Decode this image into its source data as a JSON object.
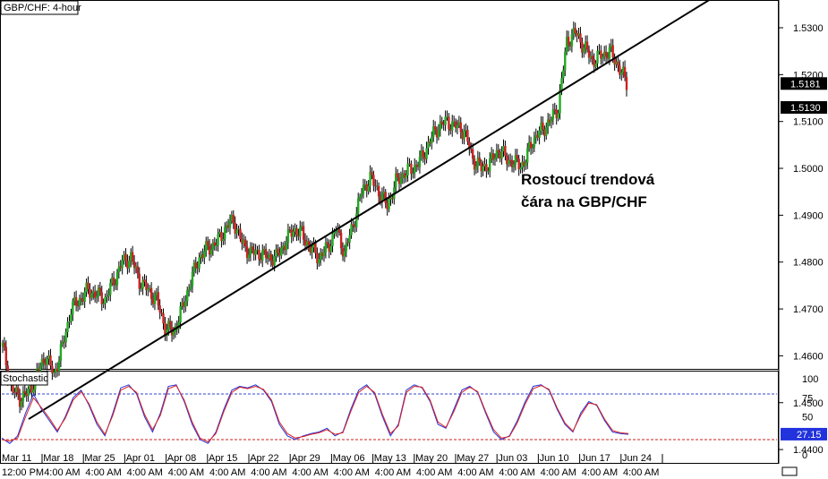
{
  "chart_data": [
    {
      "type": "candlestick",
      "title": "GBP/CHF: 4-hour",
      "annotation": [
        "Rostoucí trendová",
        "čára na GBP/CHF"
      ],
      "ylim": [
        1.444,
        1.533
      ],
      "y_ticks": [
        "1.5300",
        "1.5200",
        "1.5100",
        "1.5000",
        "1.4900",
        "1.4800",
        "1.4700",
        "1.4600",
        "1.4500",
        "1.4400"
      ],
      "x_ticks": [
        "Mar 11",
        "Mar 18",
        "Mar 25",
        "Apr 01",
        "Apr 08",
        "Apr 15",
        "Apr 22",
        "Apr 29",
        "May 06",
        "May 13",
        "May 20",
        "May 27",
        "Jun 03",
        "Jun 10",
        "Jun 17",
        "Jun 24"
      ],
      "time_labels": [
        "12:00 PM",
        "4:00 AM",
        "4:00 AM",
        "4:00 AM",
        "4:00 AM",
        "4:00 AM",
        "4:00 AM",
        "4:00 AM",
        "4:00 AM",
        "4:00 AM",
        "4:00 AM",
        "4:00 AM",
        "4:00 AM",
        "4:00 AM",
        "4:00 AM",
        "4:00 AM"
      ],
      "price_badges": [
        "1.5181",
        "1.5130"
      ],
      "close_path": [
        [
          "Mar 11",
          1.462
        ],
        [
          "Mar 12",
          1.453
        ],
        [
          "Mar 13",
          1.451
        ],
        [
          "Mar 14",
          1.452
        ],
        [
          "Mar 15",
          1.456
        ],
        [
          "Mar 18",
          1.46
        ],
        [
          "Mar 19",
          1.456
        ],
        [
          "Mar 20",
          1.462
        ],
        [
          "Mar 21",
          1.47
        ],
        [
          "Mar 22",
          1.472
        ],
        [
          "Mar 25",
          1.474
        ],
        [
          "Mar 26",
          1.473
        ],
        [
          "Mar 27",
          1.472
        ],
        [
          "Mar 28",
          1.476
        ],
        [
          "Mar 29",
          1.48
        ],
        [
          "Apr 01",
          1.481
        ],
        [
          "Apr 02",
          1.476
        ],
        [
          "Apr 03",
          1.474
        ],
        [
          "Apr 04",
          1.472
        ],
        [
          "Apr 05",
          1.466
        ],
        [
          "Apr 08",
          1.465
        ],
        [
          "Apr 09",
          1.47
        ],
        [
          "Apr 10",
          1.476
        ],
        [
          "Apr 11",
          1.481
        ],
        [
          "Apr 12",
          1.483
        ],
        [
          "Apr 15",
          1.484
        ],
        [
          "Apr 16",
          1.487
        ],
        [
          "Apr 17",
          1.489
        ],
        [
          "Apr 18",
          1.484
        ],
        [
          "Apr 19",
          1.482
        ],
        [
          "Apr 22",
          1.482
        ],
        [
          "Apr 23",
          1.481
        ],
        [
          "Apr 24",
          1.481
        ],
        [
          "Apr 25",
          1.484
        ],
        [
          "Apr 26",
          1.487
        ],
        [
          "Apr 29",
          1.486
        ],
        [
          "Apr 30",
          1.483
        ],
        [
          "May 01",
          1.481
        ],
        [
          "May 02",
          1.483
        ],
        [
          "May 03",
          1.487
        ],
        [
          "May 06",
          1.482
        ],
        [
          "May 07",
          1.488
        ],
        [
          "May 08",
          1.495
        ],
        [
          "May 09",
          1.498
        ],
        [
          "May 10",
          1.495
        ],
        [
          "May 13",
          1.492
        ],
        [
          "May 14",
          1.497
        ],
        [
          "May 15",
          1.499
        ],
        [
          "May 16",
          1.5
        ],
        [
          "May 17",
          1.502
        ],
        [
          "May 20",
          1.506
        ],
        [
          "May 21",
          1.509
        ],
        [
          "May 22",
          1.51
        ],
        [
          "May 23",
          1.509
        ],
        [
          "May 24",
          1.508
        ],
        [
          "May 27",
          1.502
        ],
        [
          "May 28",
          1.5
        ],
        [
          "May 29",
          1.501
        ],
        [
          "May 30",
          1.504
        ],
        [
          "May 31",
          1.502
        ],
        [
          "Jun 03",
          1.501
        ],
        [
          "Jun 04",
          1.501
        ],
        [
          "Jun 05",
          1.506
        ],
        [
          "Jun 06",
          1.508
        ],
        [
          "Jun 07",
          1.51
        ],
        [
          "Jun 10",
          1.513
        ],
        [
          "Jun 11",
          1.527
        ],
        [
          "Jun 12",
          1.529
        ],
        [
          "Jun 13",
          1.526
        ],
        [
          "Jun 14",
          1.523
        ],
        [
          "Jun 17",
          1.524
        ],
        [
          "Jun 18",
          1.525
        ],
        [
          "Jun 19",
          1.522
        ],
        [
          "Jun 20",
          1.5181
        ]
      ],
      "trendline": [
        [
          "Mar 11",
          1.4465
        ],
        [
          "Jun 24",
          1.5125
        ]
      ]
    },
    {
      "type": "line",
      "title": "Stochastic",
      "ylim": [
        0,
        100
      ],
      "y_ticks": [
        "100",
        "75",
        "50",
        "25",
        "0"
      ],
      "levels": [
        80,
        20
      ],
      "last_value": "27.15",
      "series": [
        {
          "color": "#2233dd",
          "values": [
            22,
            15,
            25,
            55,
            80,
            60,
            45,
            30,
            50,
            75,
            85,
            65,
            40,
            25,
            55,
            88,
            92,
            80,
            50,
            30,
            55,
            90,
            92,
            70,
            40,
            20,
            15,
            30,
            60,
            85,
            90,
            88,
            92,
            85,
            70,
            40,
            25,
            20,
            25,
            28,
            30,
            35,
            25,
            30,
            60,
            85,
            92,
            80,
            50,
            25,
            40,
            85,
            92,
            88,
            70,
            40,
            35,
            60,
            85,
            90,
            82,
            55,
            30,
            20,
            25,
            45,
            70,
            90,
            92,
            85,
            60,
            40,
            30,
            55,
            70,
            65,
            45,
            30,
            28,
            27
          ]
        },
        {
          "color": "#dd2222",
          "values": [
            20,
            18,
            22,
            50,
            75,
            62,
            48,
            32,
            48,
            72,
            83,
            67,
            43,
            27,
            52,
            85,
            90,
            82,
            53,
            33,
            52,
            87,
            91,
            72,
            43,
            22,
            17,
            28,
            57,
            82,
            89,
            87,
            90,
            86,
            72,
            43,
            28,
            22,
            24,
            27,
            29,
            33,
            27,
            29,
            57,
            82,
            90,
            82,
            53,
            28,
            38,
            82,
            90,
            89,
            72,
            43,
            36,
            57,
            82,
            89,
            83,
            57,
            33,
            22,
            24,
            42,
            67,
            87,
            91,
            86,
            62,
            42,
            31,
            52,
            68,
            66,
            47,
            32,
            29,
            28
          ]
        }
      ]
    }
  ],
  "colors": {
    "bull": "#22aa22",
    "bear": "#cc2222",
    "wick": "#000000",
    "k_line": "#2233dd",
    "d_line": "#dd2222",
    "level_80": "#3344cc",
    "level_20": "#cc2222",
    "badge": "#000000",
    "stoch_badge": "#2233dd"
  }
}
